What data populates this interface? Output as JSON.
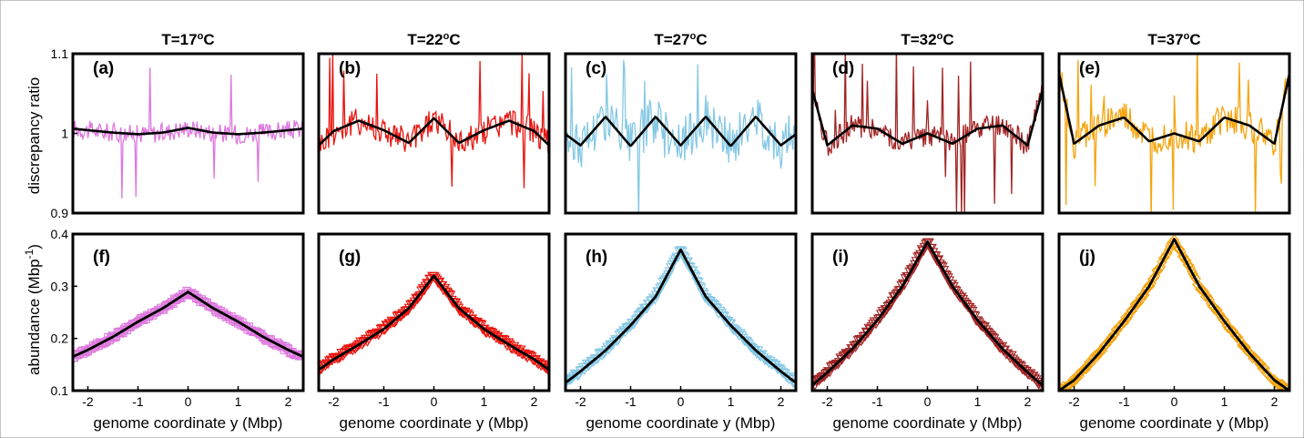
{
  "figure": {
    "ylabel_top": "discrepancy ratio",
    "ylabel_bottom_main": "abundance (Mbp",
    "ylabel_bottom_sup": "-1",
    "ylabel_bottom_close": ")",
    "xlabel": "genome coordinate y (Mbp)"
  },
  "chart_data": [
    {
      "type": "line",
      "panel": "(a)",
      "title_prefix": "T=17",
      "title_sup": "o",
      "title_suffix": "C",
      "row": "top",
      "color": "#dd77dd",
      "ylabel": "discrepancy ratio",
      "xlim": [
        -2.3,
        2.3
      ],
      "ylim": [
        0.9,
        1.1
      ],
      "yticks": [
        "0.9",
        "1",
        "1.1"
      ],
      "ytick_values": [
        0.9,
        1.0,
        1.1
      ],
      "fit": {
        "x": [
          -2.3,
          -2,
          -1.5,
          -1,
          -0.5,
          0,
          0.5,
          1,
          1.5,
          2,
          2.3
        ],
        "y": [
          1.006,
          1.004,
          1.001,
          0.999,
          1.001,
          1.007,
          1.001,
          0.999,
          1.001,
          1.004,
          1.006
        ]
      },
      "noise": {
        "amplitude": 0.012,
        "spikes": 6
      }
    },
    {
      "type": "line",
      "panel": "(b)",
      "title_prefix": "T=22",
      "title_sup": "o",
      "title_suffix": "C",
      "row": "top",
      "color": "#e8140e",
      "xlim": [
        -2.3,
        2.3
      ],
      "ylim": [
        0.9,
        1.1
      ],
      "fit": {
        "x": [
          -2.3,
          -2,
          -1.5,
          -1,
          -0.5,
          0,
          0.5,
          1,
          1.5,
          2,
          2.3
        ],
        "y": [
          0.985,
          1.003,
          1.016,
          1.004,
          0.988,
          1.019,
          0.988,
          1.004,
          1.016,
          1.003,
          0.985
        ]
      },
      "noise": {
        "amplitude": 0.018,
        "spikes": 10
      }
    },
    {
      "type": "line",
      "panel": "(c)",
      "title_prefix": "T=27",
      "title_sup": "o",
      "title_suffix": "C",
      "row": "top",
      "color": "#84c8e4",
      "xlim": [
        -2.3,
        2.3
      ],
      "ylim": [
        0.9,
        1.1
      ],
      "fit": {
        "x": [
          -2.3,
          -2,
          -1.5,
          -1,
          -0.5,
          0,
          0.5,
          1,
          1.5,
          2,
          2.3
        ],
        "y": [
          0.999,
          0.985,
          1.021,
          0.984,
          1.021,
          0.985,
          1.021,
          0.984,
          1.021,
          0.985,
          0.999
        ]
      },
      "noise": {
        "amplitude": 0.03,
        "spikes": 12
      }
    },
    {
      "type": "line",
      "panel": "(d)",
      "title_prefix": "T=32",
      "title_sup": "o",
      "title_suffix": "C",
      "row": "top",
      "color": "#a22424",
      "xlim": [
        -2.3,
        2.3
      ],
      "ylim": [
        0.9,
        1.1
      ],
      "fit": {
        "x": [
          -2.3,
          -2,
          -1.5,
          -1,
          -0.5,
          0,
          0.5,
          1,
          1.5,
          2,
          2.3
        ],
        "y": [
          1.055,
          0.985,
          1.01,
          1.006,
          0.987,
          1.0,
          0.987,
          1.006,
          1.01,
          0.985,
          1.055
        ]
      },
      "noise": {
        "amplitude": 0.015,
        "spikes": 10
      }
    },
    {
      "type": "line",
      "panel": "(e)",
      "title_prefix": "T=37",
      "title_sup": "o",
      "title_suffix": "C",
      "row": "top",
      "color": "#f5a40e",
      "xlim": [
        -2.3,
        2.3
      ],
      "ylim": [
        0.9,
        1.1
      ],
      "fit": {
        "x": [
          -2.3,
          -2,
          -1.5,
          -1,
          -0.5,
          0,
          0.5,
          1,
          1.5,
          2,
          2.3
        ],
        "y": [
          1.075,
          0.987,
          1.01,
          1.02,
          0.99,
          1.0,
          0.99,
          1.02,
          1.01,
          0.987,
          1.075
        ]
      },
      "noise": {
        "amplitude": 0.02,
        "spikes": 10
      }
    },
    {
      "type": "scatter",
      "panel": "(f)",
      "row": "bottom",
      "color": "#dd77dd",
      "marker": "square",
      "ylabel": "abundance (Mbp-1)",
      "xlabel": "genome coordinate y (Mbp)",
      "xlim": [
        -2.3,
        2.3
      ],
      "ylim": [
        0.1,
        0.4
      ],
      "xticks": [
        "-2",
        "-1",
        "0",
        "1",
        "2"
      ],
      "xtick_values": [
        -2,
        -1,
        0,
        1,
        2
      ],
      "yticks": [
        "0.1",
        "0.2",
        "0.3",
        "0.4"
      ],
      "ytick_values": [
        0.1,
        0.2,
        0.3,
        0.4
      ],
      "fit": {
        "x": [
          -2.3,
          -2,
          -1.5,
          -1,
          -0.5,
          0,
          0.5,
          1,
          1.5,
          2,
          2.3
        ],
        "y": [
          0.165,
          0.178,
          0.203,
          0.232,
          0.258,
          0.289,
          0.258,
          0.232,
          0.203,
          0.178,
          0.165
        ]
      }
    },
    {
      "type": "scatter",
      "panel": "(g)",
      "row": "bottom",
      "color": "#e8140e",
      "marker": "triangle-down",
      "xlim": [
        -2.3,
        2.3
      ],
      "ylim": [
        0.1,
        0.4
      ],
      "fit": {
        "x": [
          -2.3,
          -2,
          -1.5,
          -1,
          -0.5,
          0,
          0.5,
          1,
          1.5,
          2,
          2.3
        ],
        "y": [
          0.14,
          0.16,
          0.188,
          0.218,
          0.258,
          0.32,
          0.258,
          0.218,
          0.188,
          0.16,
          0.14
        ]
      }
    },
    {
      "type": "scatter",
      "panel": "(h)",
      "row": "bottom",
      "color": "#84c8e4",
      "marker": "triangle-down",
      "xlim": [
        -2.3,
        2.3
      ],
      "ylim": [
        0.1,
        0.4
      ],
      "fit": {
        "x": [
          -2.3,
          -2,
          -1.5,
          -1,
          -0.5,
          0,
          0.5,
          1,
          1.5,
          2,
          2.3
        ],
        "y": [
          0.115,
          0.137,
          0.177,
          0.225,
          0.28,
          0.37,
          0.28,
          0.225,
          0.177,
          0.137,
          0.115
        ]
      }
    },
    {
      "type": "scatter",
      "panel": "(i)",
      "row": "bottom",
      "color": "#a22424",
      "marker": "triangle-down",
      "xlim": [
        -2.3,
        2.3
      ],
      "ylim": [
        0.1,
        0.4
      ],
      "fit": {
        "x": [
          -2.3,
          -2,
          -1.5,
          -1,
          -0.5,
          0,
          0.5,
          1,
          1.5,
          2,
          2.3
        ],
        "y": [
          0.11,
          0.135,
          0.18,
          0.235,
          0.3,
          0.385,
          0.3,
          0.235,
          0.18,
          0.135,
          0.11
        ]
      }
    },
    {
      "type": "scatter",
      "panel": "(j)",
      "row": "bottom",
      "color": "#f5a40e",
      "marker": "diamond",
      "xlim": [
        -2.3,
        2.3
      ],
      "ylim": [
        0.1,
        0.4
      ],
      "fit": {
        "x": [
          -2.3,
          -2,
          -1.5,
          -1,
          -0.5,
          0,
          0.5,
          1,
          1.5,
          2,
          2.3
        ],
        "y": [
          0.1,
          0.12,
          0.172,
          0.233,
          0.3,
          0.39,
          0.3,
          0.233,
          0.172,
          0.12,
          0.1
        ]
      }
    }
  ]
}
